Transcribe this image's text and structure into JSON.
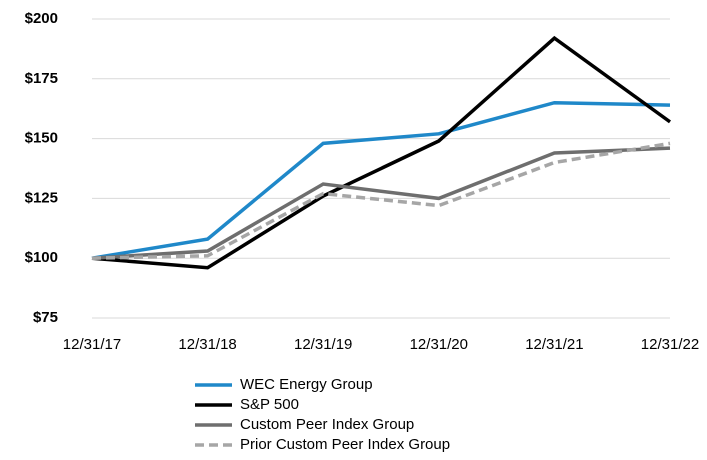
{
  "chart_data": {
    "type": "line",
    "categories": [
      "12/31/17",
      "12/31/18",
      "12/31/19",
      "12/31/20",
      "12/31/21",
      "12/31/22"
    ],
    "series": [
      {
        "name": "WEC Energy Group",
        "color": "#1f88c9",
        "values": [
          100,
          108,
          148,
          152,
          165,
          164
        ]
      },
      {
        "name": "S&P 500",
        "color": "#000000",
        "values": [
          100,
          96,
          126,
          149,
          192,
          157
        ]
      },
      {
        "name": "Custom Peer Index Group",
        "color": "#6e6e6e",
        "values": [
          100,
          103,
          131,
          125,
          144,
          146
        ]
      },
      {
        "name": "Prior Custom Peer Index Group",
        "color": "#a6a6a6",
        "dashed": true,
        "values": [
          100,
          101,
          127,
          122,
          140,
          148
        ]
      }
    ],
    "ylim": [
      75,
      200
    ],
    "yticks": [
      {
        "value": 75,
        "label": "$75"
      },
      {
        "value": 100,
        "label": "$100"
      },
      {
        "value": 125,
        "label": "$125"
      },
      {
        "value": 150,
        "label": "$150"
      },
      {
        "value": 175,
        "label": "$175"
      },
      {
        "value": 200,
        "label": "$200"
      }
    ],
    "grid": true,
    "legend": "bottom"
  }
}
